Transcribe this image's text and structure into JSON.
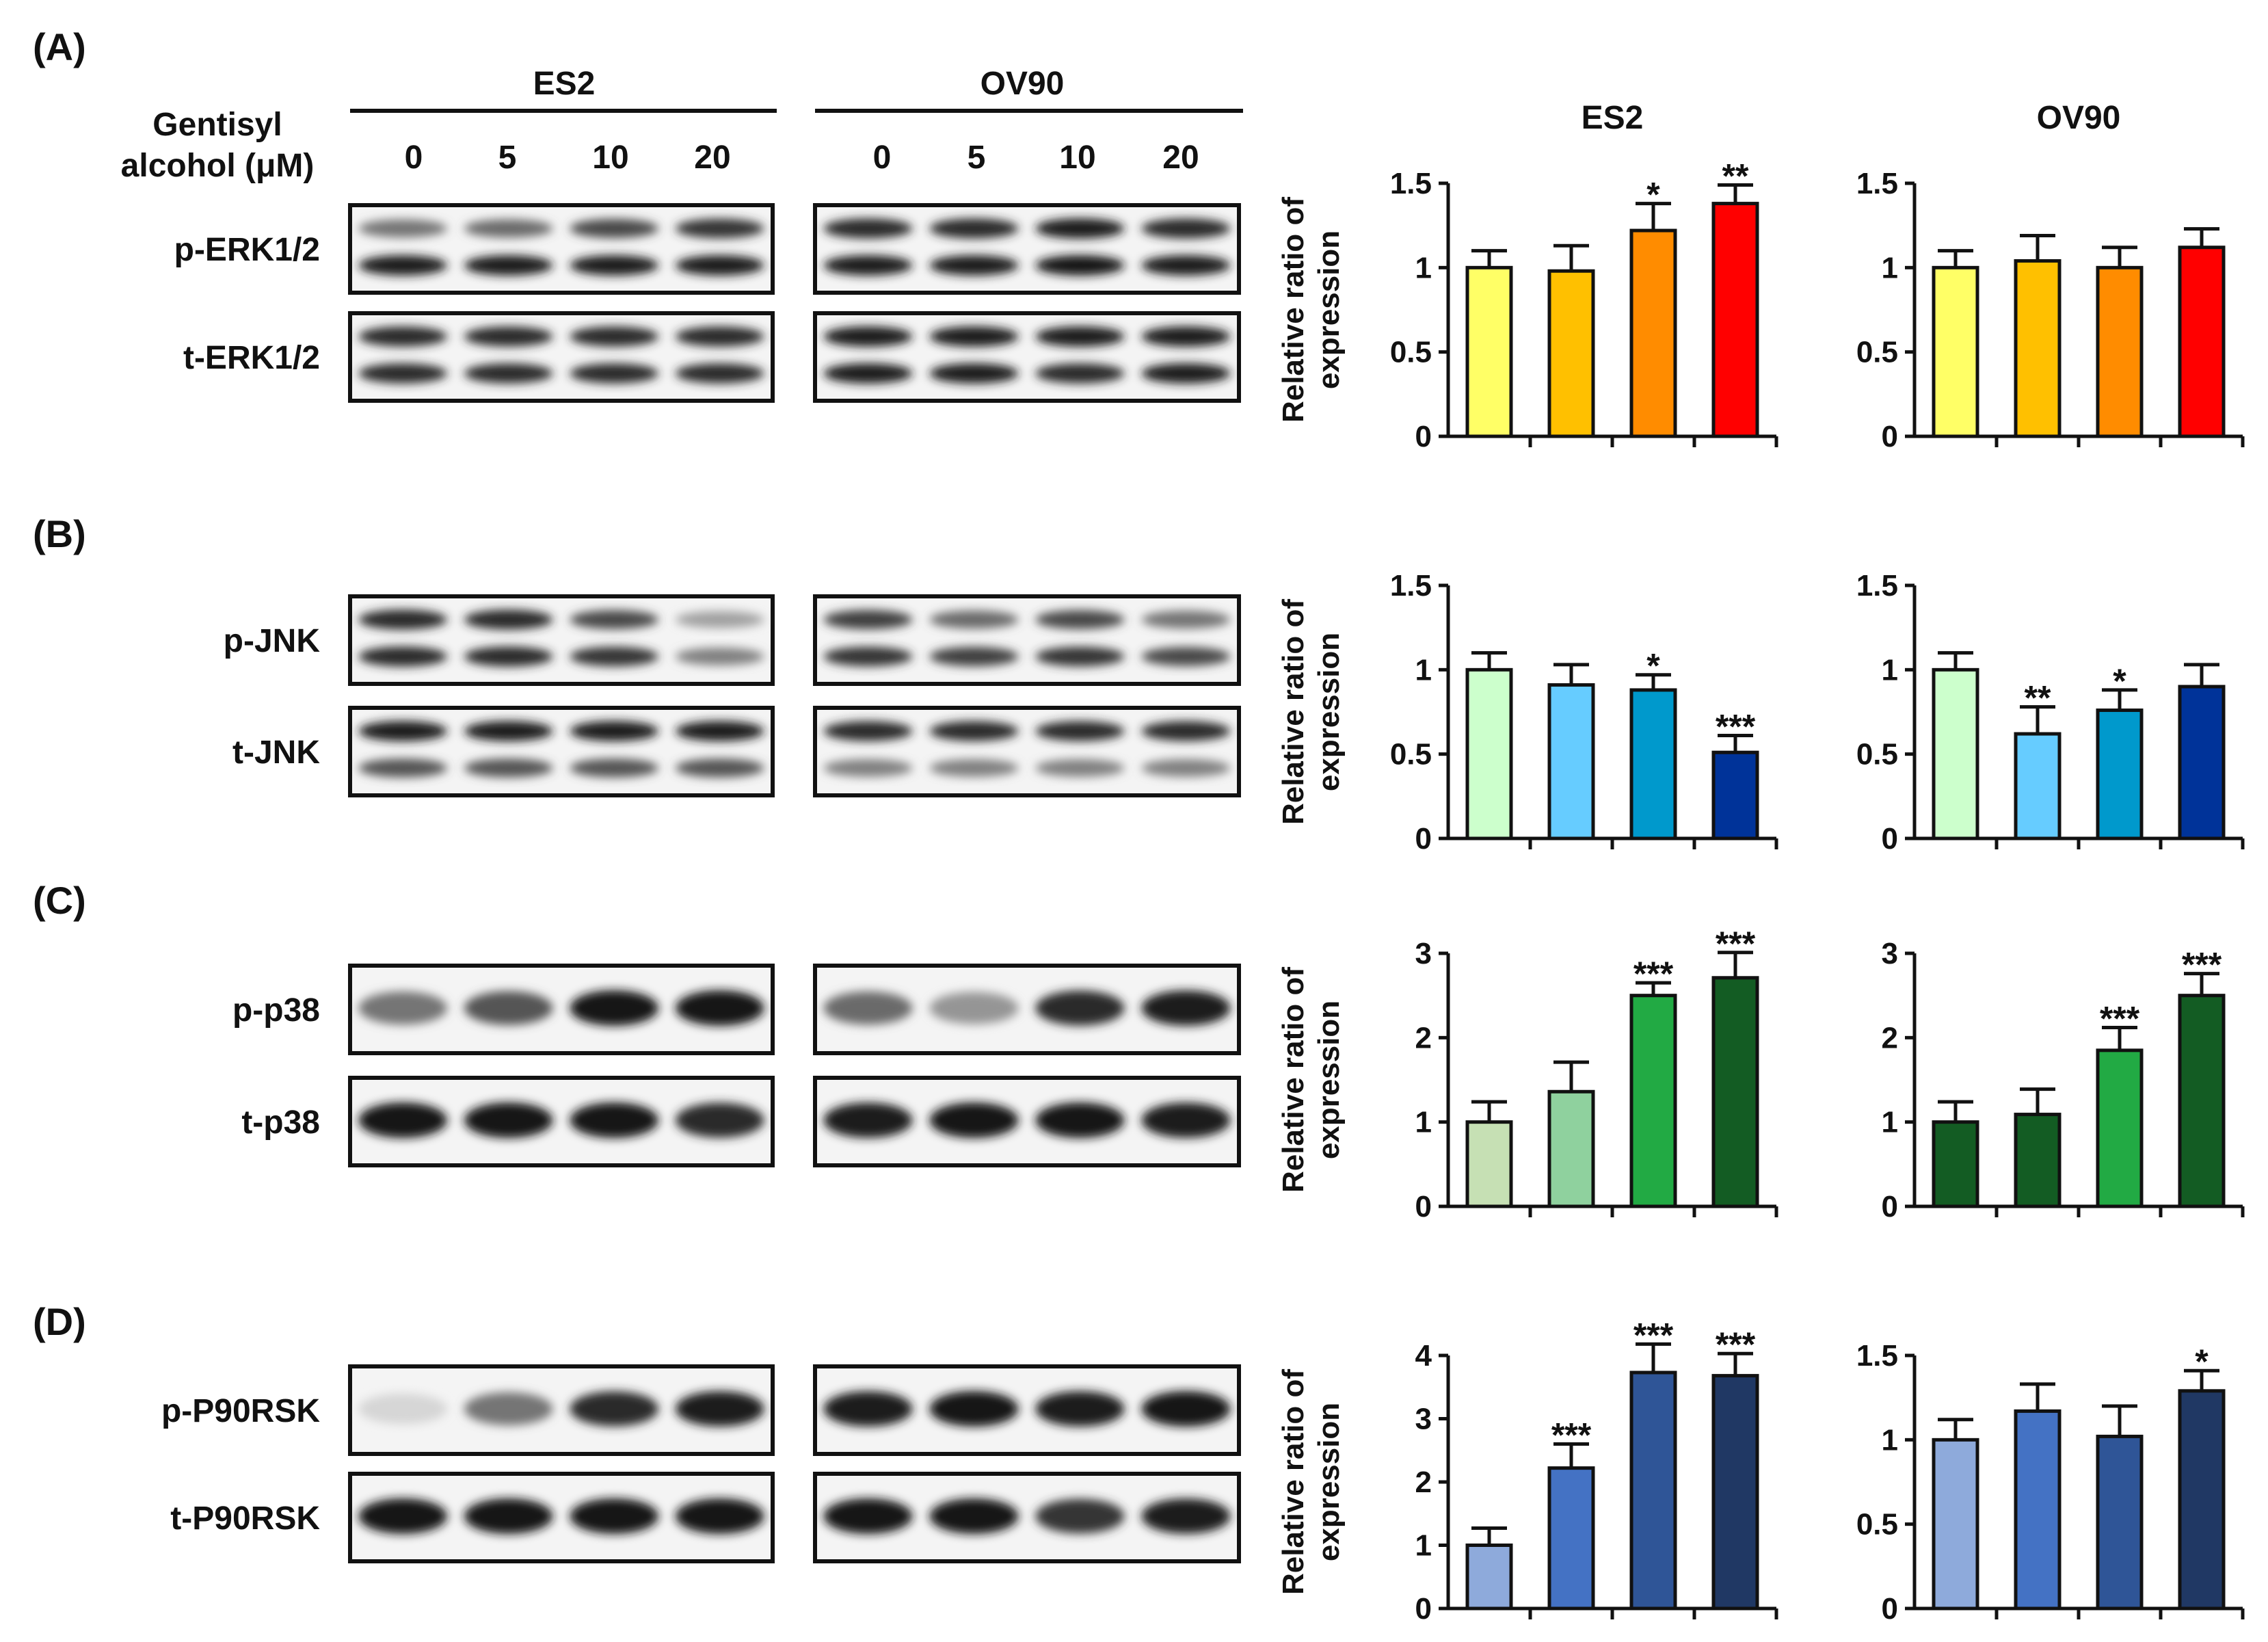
{
  "figure": {
    "treatment_label_line1": "Gentisyl",
    "treatment_label_line2": "alcohol (μM)",
    "cell_lines": [
      "ES2",
      "OV90"
    ],
    "doses": [
      "0",
      "5",
      "10",
      "20"
    ]
  },
  "blots": [
    {
      "letter": "(A)",
      "rows": [
        {
          "label": "p-ERK1/2",
          "bands": 2,
          "intensity": [
            [
              0.55,
              0.95
            ],
            [
              0.6,
              0.95
            ],
            [
              0.75,
              0.95
            ],
            [
              0.85,
              0.95
            ]
          ],
          "intensity2": [
            [
              0.9,
              0.95
            ],
            [
              0.9,
              0.95
            ],
            [
              0.95,
              0.98
            ],
            [
              0.9,
              0.95
            ]
          ]
        },
        {
          "label": "t-ERK1/2",
          "bands": 2,
          "intensity": [
            [
              0.9,
              0.9
            ],
            [
              0.9,
              0.9
            ],
            [
              0.9,
              0.9
            ],
            [
              0.9,
              0.9
            ]
          ],
          "intensity2": [
            [
              0.95,
              0.95
            ],
            [
              0.95,
              0.95
            ],
            [
              0.95,
              0.9
            ],
            [
              0.95,
              0.95
            ]
          ]
        }
      ]
    },
    {
      "letter": "(B)",
      "rows": [
        {
          "label": "p-JNK",
          "bands": 2,
          "intensity": [
            [
              0.9,
              0.9
            ],
            [
              0.9,
              0.9
            ],
            [
              0.75,
              0.85
            ],
            [
              0.35,
              0.5
            ]
          ],
          "intensity2": [
            [
              0.8,
              0.85
            ],
            [
              0.6,
              0.8
            ],
            [
              0.75,
              0.85
            ],
            [
              0.55,
              0.75
            ]
          ]
        },
        {
          "label": "t-JNK",
          "bands": 2,
          "intensity": [
            [
              0.95,
              0.7
            ],
            [
              0.95,
              0.7
            ],
            [
              0.95,
              0.7
            ],
            [
              0.95,
              0.7
            ]
          ],
          "intensity2": [
            [
              0.9,
              0.5
            ],
            [
              0.9,
              0.5
            ],
            [
              0.9,
              0.5
            ],
            [
              0.9,
              0.5
            ]
          ]
        }
      ]
    },
    {
      "letter": "(C)",
      "rows": [
        {
          "label": "p-p38",
          "bands": 1,
          "intensity": [
            [
              0.55
            ],
            [
              0.7
            ],
            [
              1.0
            ],
            [
              1.0
            ]
          ],
          "intensity2": [
            [
              0.6
            ],
            [
              0.4
            ],
            [
              0.9
            ],
            [
              0.95
            ]
          ]
        },
        {
          "label": "t-p38",
          "bands": 1,
          "intensity": [
            [
              1.0
            ],
            [
              1.0
            ],
            [
              1.0
            ],
            [
              0.9
            ]
          ],
          "intensity2": [
            [
              0.95
            ],
            [
              1.0
            ],
            [
              1.0
            ],
            [
              0.95
            ]
          ]
        }
      ]
    },
    {
      "letter": "(D)",
      "rows": [
        {
          "label": "p-P90RSK",
          "bands": 1,
          "intensity": [
            [
              0.1
            ],
            [
              0.55
            ],
            [
              0.9
            ],
            [
              0.95
            ]
          ],
          "intensity2": [
            [
              0.95
            ],
            [
              1.0
            ],
            [
              0.95
            ],
            [
              1.0
            ]
          ]
        },
        {
          "label": "t-P90RSK",
          "bands": 1,
          "intensity": [
            [
              1.0
            ],
            [
              1.0
            ],
            [
              1.0
            ],
            [
              1.0
            ]
          ],
          "intensity2": [
            [
              1.0
            ],
            [
              1.0
            ],
            [
              0.85
            ],
            [
              0.95
            ]
          ]
        }
      ]
    }
  ],
  "chart_data": [
    {
      "type": "bar",
      "title": "ES2",
      "ylabel_line1": "Relative ratio of",
      "ylabel_line2": "expression",
      "ylim": [
        0,
        1.5
      ],
      "yticks": [
        "0",
        "0.5",
        "1",
        "1.5"
      ],
      "ytick_values": [
        0,
        0.5,
        1,
        1.5
      ],
      "values": [
        1.0,
        0.98,
        1.22,
        1.38
      ],
      "errors": [
        0.1,
        0.15,
        0.16,
        0.11
      ],
      "sig": [
        "",
        "",
        "*",
        "**"
      ],
      "colors": [
        "#ffff66",
        "#ffc000",
        "#ff8c00",
        "#ff0000"
      ]
    },
    {
      "type": "bar",
      "title": "OV90",
      "ylim": [
        0,
        1.5
      ],
      "yticks": [
        "0",
        "0.5",
        "1",
        "1.5"
      ],
      "ytick_values": [
        0,
        0.5,
        1,
        1.5
      ],
      "values": [
        1.0,
        1.04,
        1.0,
        1.12
      ],
      "errors": [
        0.1,
        0.15,
        0.12,
        0.11
      ],
      "sig": [
        "",
        "",
        "",
        ""
      ],
      "colors": [
        "#ffff66",
        "#ffc000",
        "#ff8c00",
        "#ff0000"
      ]
    },
    {
      "type": "bar",
      "ylabel_line1": "Relative ratio of",
      "ylabel_line2": "expression",
      "ylim": [
        0,
        1.5
      ],
      "yticks": [
        "0",
        "0.5",
        "1",
        "1.5"
      ],
      "ytick_values": [
        0,
        0.5,
        1,
        1.5
      ],
      "values": [
        1.0,
        0.91,
        0.88,
        0.51
      ],
      "errors": [
        0.1,
        0.12,
        0.09,
        0.1
      ],
      "sig": [
        "",
        "",
        "*",
        "***"
      ],
      "colors": [
        "#ccffcc",
        "#66ccff",
        "#0099cc",
        "#003399"
      ]
    },
    {
      "type": "bar",
      "ylim": [
        0,
        1.5
      ],
      "yticks": [
        "0",
        "0.5",
        "1",
        "1.5"
      ],
      "ytick_values": [
        0,
        0.5,
        1,
        1.5
      ],
      "values": [
        1.0,
        0.62,
        0.76,
        0.9
      ],
      "errors": [
        0.1,
        0.16,
        0.12,
        0.13
      ],
      "sig": [
        "",
        "**",
        "*",
        ""
      ],
      "colors": [
        "#ccffcc",
        "#66ccff",
        "#0099cc",
        "#003399"
      ]
    },
    {
      "type": "bar",
      "ylabel_line1": "Relative ratio of",
      "ylabel_line2": "expression",
      "ylim": [
        0,
        3
      ],
      "yticks": [
        "0",
        "1",
        "2",
        "3"
      ],
      "ytick_values": [
        0,
        1,
        2,
        3
      ],
      "values": [
        1.0,
        1.36,
        2.5,
        2.71
      ],
      "errors": [
        0.24,
        0.35,
        0.15,
        0.3
      ],
      "sig": [
        "",
        "",
        "***",
        "***"
      ],
      "colors": [
        "#c6e0b4",
        "#8fd19e",
        "#22aa44",
        "#135c23"
      ]
    },
    {
      "type": "bar",
      "ylim": [
        0,
        3
      ],
      "yticks": [
        "0",
        "1",
        "2",
        "3"
      ],
      "ytick_values": [
        0,
        1,
        2,
        3
      ],
      "values": [
        1.0,
        1.09,
        1.85,
        2.5
      ],
      "errors": [
        0.24,
        0.3,
        0.27,
        0.26
      ],
      "sig": [
        "",
        "",
        "***",
        "***"
      ],
      "colors": [
        "#135c23",
        "#135c23",
        "#22aa44",
        "#135c23"
      ]
    },
    {
      "type": "bar",
      "ylabel_line1": "Relative ratio of",
      "ylabel_line2": "expression",
      "ylim": [
        0,
        4
      ],
      "yticks": [
        "0",
        "1",
        "2",
        "3",
        "4"
      ],
      "ytick_values": [
        0,
        1,
        2,
        3,
        4
      ],
      "values": [
        1.0,
        2.22,
        3.73,
        3.68
      ],
      "errors": [
        0.27,
        0.38,
        0.45,
        0.35
      ],
      "sig": [
        "",
        "***",
        "***",
        "***"
      ],
      "colors": [
        "#8eaadb",
        "#4472c4",
        "#2f5597",
        "#203864"
      ]
    },
    {
      "type": "bar",
      "ylim": [
        0,
        1.5
      ],
      "yticks": [
        "0",
        "0.5",
        "1",
        "1.5"
      ],
      "ytick_values": [
        0,
        0.5,
        1,
        1.5
      ],
      "values": [
        1.0,
        1.17,
        1.02,
        1.29
      ],
      "errors": [
        0.12,
        0.16,
        0.18,
        0.12
      ],
      "sig": [
        "",
        "",
        "",
        "*"
      ],
      "colors": [
        "#8eaadb",
        "#4472c4",
        "#2f5597",
        "#203864"
      ]
    }
  ]
}
